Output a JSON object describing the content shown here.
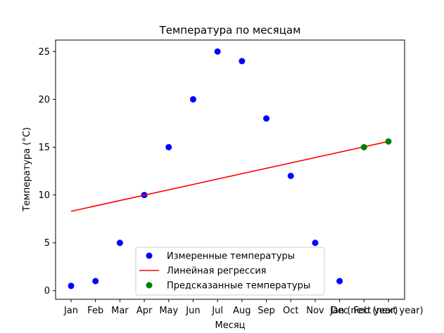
{
  "chart_data": {
    "type": "scatter",
    "title": "Температура по месяцам",
    "xlabel": "Месяц",
    "ylabel": "Температура (°C)",
    "categories": [
      "Jan",
      "Feb",
      "Mar",
      "Apr",
      "May",
      "Jun",
      "Jul",
      "Aug",
      "Sep",
      "Oct",
      "Nov",
      "Dec",
      "Jan (next year)",
      "Feb (next year)"
    ],
    "ylim": [
      -0.9,
      26.2
    ],
    "yticks": [
      0,
      5,
      10,
      15,
      20,
      25
    ],
    "grid": false,
    "legend_placement": "lower center",
    "series": [
      {
        "name": "Измеренные температуры",
        "kind": "scatter",
        "color": "#0000ff",
        "x": [
          1,
          2,
          3,
          4,
          5,
          6,
          7,
          8,
          9,
          10,
          11,
          12
        ],
        "values": [
          0.5,
          1,
          5,
          10,
          15,
          20,
          25,
          24,
          18,
          12,
          5,
          1
        ]
      },
      {
        "name": "Линейная регрессия",
        "kind": "line",
        "color": "#ff0000",
        "x": [
          1,
          14
        ],
        "values": [
          8.3,
          15.6
        ]
      },
      {
        "name": "Предсказанные температуры",
        "kind": "scatter",
        "color": "#008000",
        "x": [
          13,
          14
        ],
        "values": [
          15.0,
          15.6
        ]
      }
    ]
  }
}
